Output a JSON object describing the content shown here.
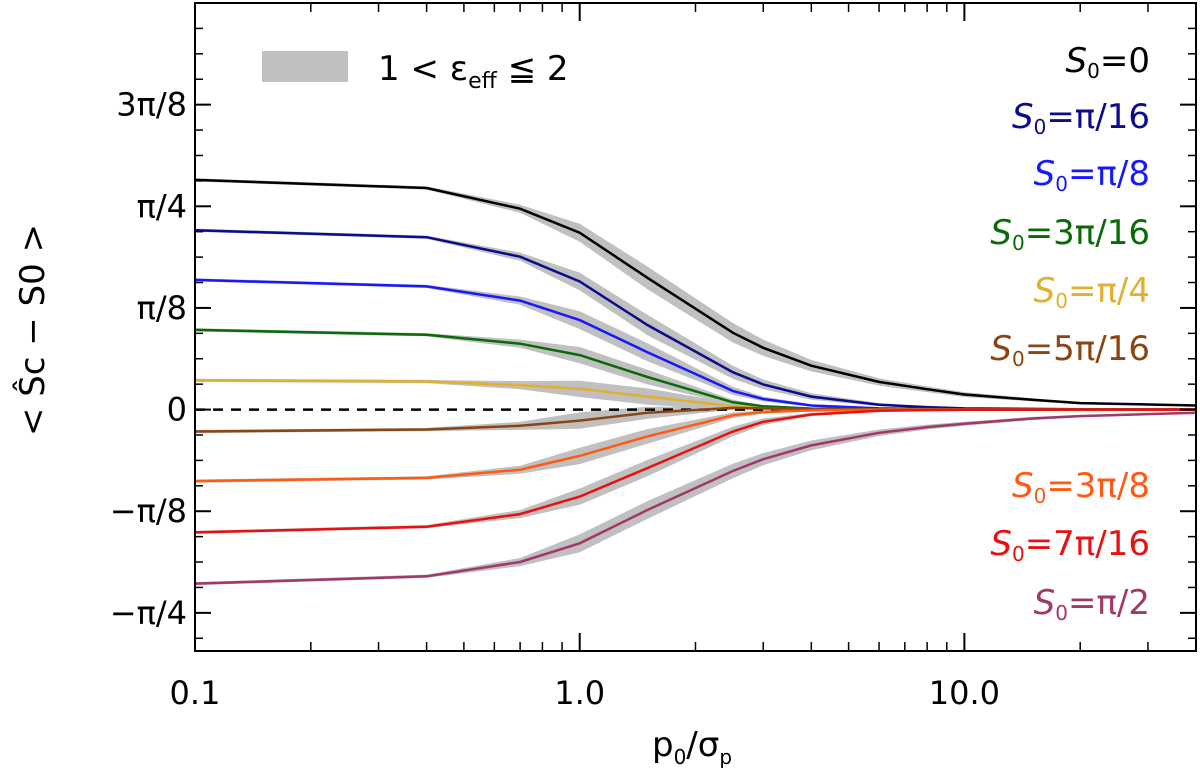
{
  "chart_data": {
    "type": "line",
    "xscale": "log",
    "xlim": [
      0.1,
      40
    ],
    "ylim_pi_units": [
      -0.2969,
      0.5
    ],
    "x_ticks": [
      {
        "value": 0.1,
        "label": "0.1"
      },
      {
        "value": 1.0,
        "label": "1.0"
      },
      {
        "value": 10.0,
        "label": "10.0"
      }
    ],
    "y_ticks": [
      {
        "value": -0.25,
        "label": "−π/4"
      },
      {
        "value": -0.125,
        "label": "−π/8"
      },
      {
        "value": 0,
        "label": "0"
      },
      {
        "value": 0.125,
        "label": "π/8"
      },
      {
        "value": 0.25,
        "label": "π/4"
      },
      {
        "value": 0.375,
        "label": "3π/8"
      }
    ],
    "ylabel": "< Ŝc − S0 >",
    "xlabel": "p0/σp",
    "legend_band_label": "1 < εeff ≦ 2",
    "band_color": "#c0c0c0",
    "x": [
      0.1,
      0.4,
      0.7,
      1.0,
      1.5,
      2.5,
      3.0,
      4.0,
      6.0,
      8.0,
      10.0,
      15.0,
      20.0,
      40.0
    ],
    "series": [
      {
        "name": "S0=0",
        "label_s": "S",
        "label_sub": "0",
        "label_rest": "=0",
        "color": "#000000",
        "values": [
          0.2825,
          0.2725,
          0.247,
          0.2175,
          0.162,
          0.0945,
          0.076,
          0.054,
          0.034,
          0.025,
          0.0185,
          0.012,
          0.008,
          0.005
        ],
        "band": [
          0.004,
          0.004,
          0.01,
          0.022,
          0.028,
          0.024,
          0.02,
          0.014,
          0.009,
          0.007,
          0.006,
          0.004,
          0.003,
          0.002
        ]
      },
      {
        "name": "S0=π/16",
        "label_s": "S",
        "label_sub": "0",
        "label_rest": "=π/16",
        "color": "#0b0b8c",
        "values": [
          0.2205,
          0.212,
          0.188,
          0.1575,
          0.104,
          0.046,
          0.031,
          0.016,
          0.006,
          0.003,
          0.0015,
          0.0008,
          0.0004,
          0.0002
        ],
        "band": [
          0.004,
          0.004,
          0.01,
          0.022,
          0.025,
          0.016,
          0.012,
          0.008,
          0.004,
          0.002,
          0.001,
          0.001,
          0.001,
          0.001
        ]
      },
      {
        "name": "S0=π/8",
        "label_s": "S",
        "label_sub": "0",
        "label_rest": "=π/8",
        "color": "#1818ff",
        "values": [
          0.1595,
          0.1515,
          0.134,
          0.11,
          0.0705,
          0.023,
          0.013,
          0.005,
          0.0015,
          0.0008,
          0.0004,
          0.0002,
          0.0001,
          0.0001
        ],
        "band": [
          0.004,
          0.004,
          0.01,
          0.022,
          0.022,
          0.01,
          0.006,
          0.003,
          0.002,
          0.001,
          0.001,
          0.001,
          0.001,
          0.001
        ]
      },
      {
        "name": "S0=3π/16",
        "label_s": "S",
        "label_sub": "0",
        "label_rest": "=3π/16",
        "color": "#086b08",
        "values": [
          0.098,
          0.092,
          0.081,
          0.067,
          0.04,
          0.009,
          0.004,
          0.0012,
          0.0004,
          0.0002,
          0.0001,
          0.0001,
          0.0,
          0.0
        ],
        "band": [
          0.004,
          0.004,
          0.01,
          0.02,
          0.018,
          0.006,
          0.003,
          0.002,
          0.001,
          0.001,
          0.001,
          0.001,
          0.001,
          0.001
        ]
      },
      {
        "name": "S0=π/4",
        "label_s": "S",
        "label_sub": "0",
        "label_rest": "=π/4",
        "color": "#e0b030",
        "values": [
          0.036,
          0.0345,
          0.03,
          0.0255,
          0.016,
          0.004,
          0.0015,
          0.0005,
          0.0002,
          0.0001,
          0.0,
          0.0,
          0.0,
          0.0
        ],
        "band": [
          0.004,
          0.004,
          0.01,
          0.02,
          0.02,
          0.008,
          0.004,
          0.002,
          0.001,
          0.001,
          0.001,
          0.001,
          0.001,
          0.001
        ]
      },
      {
        "name": "S0=5π/16",
        "label_s": "S",
        "label_sub": "0",
        "label_rest": "=5π/16",
        "color": "#8b4513",
        "values": [
          -0.027,
          -0.0245,
          -0.02,
          -0.0135,
          -0.004,
          0.002,
          0.0015,
          0.0008,
          0.0003,
          0.0001,
          0.0,
          0.0,
          0.0,
          0.0
        ],
        "band": [
          0.004,
          0.004,
          0.01,
          0.02,
          0.015,
          0.004,
          0.003,
          0.002,
          0.001,
          0.001,
          0.001,
          0.001,
          0.001,
          0.001
        ]
      },
      {
        "name": "S0=3π/8",
        "label_s": "S",
        "label_sub": "0",
        "label_rest": "=3π/8",
        "color": "#ff5a14",
        "values": [
          -0.088,
          -0.084,
          -0.074,
          -0.057,
          -0.033,
          -0.007,
          -0.003,
          -0.001,
          -0.0003,
          -0.0001,
          0.0,
          0.0,
          0.0,
          0.0
        ],
        "band": [
          0.004,
          0.004,
          0.01,
          0.02,
          0.018,
          0.007,
          0.004,
          0.002,
          0.001,
          0.001,
          0.001,
          0.001,
          0.001,
          0.001
        ]
      },
      {
        "name": "S0=7π/16",
        "label_s": "S",
        "label_sub": "0",
        "label_rest": "=7π/16",
        "color": "#e81010",
        "values": [
          -0.151,
          -0.144,
          -0.1285,
          -0.107,
          -0.072,
          -0.027,
          -0.015,
          -0.006,
          -0.0015,
          -0.0007,
          -0.0003,
          -0.0001,
          0.0,
          0.0
        ],
        "band": [
          0.004,
          0.004,
          0.01,
          0.02,
          0.02,
          0.012,
          0.008,
          0.004,
          0.002,
          0.001,
          0.001,
          0.001,
          0.001,
          0.001
        ]
      },
      {
        "name": "S0=π/2",
        "label_s": "S",
        "label_sub": "0",
        "label_rest": "=π/2",
        "color": "#a0386a",
        "values": [
          -0.214,
          -0.205,
          -0.1875,
          -0.1645,
          -0.1235,
          -0.0755,
          -0.061,
          -0.044,
          -0.0285,
          -0.0215,
          -0.0175,
          -0.011,
          -0.008,
          -0.004
        ],
        "band": [
          0.004,
          0.004,
          0.01,
          0.022,
          0.022,
          0.018,
          0.015,
          0.012,
          0.008,
          0.006,
          0.005,
          0.004,
          0.003,
          0.002
        ]
      }
    ]
  }
}
